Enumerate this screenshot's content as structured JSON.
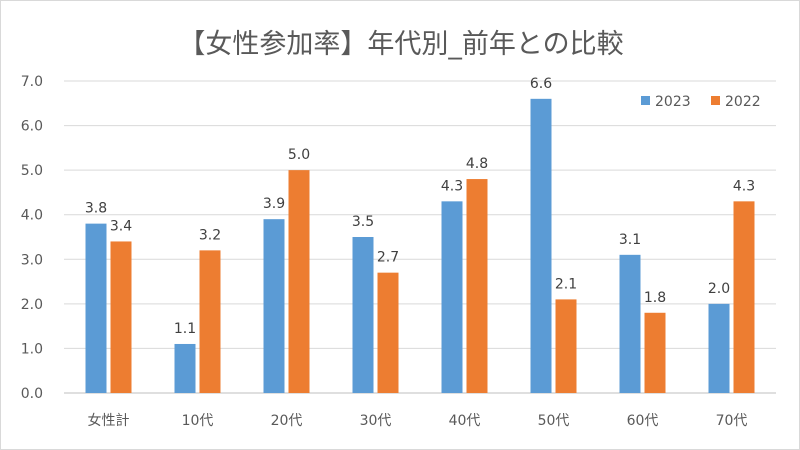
{
  "chart_data": {
    "type": "bar",
    "title": "【女性参加率】年代別_前年との比較",
    "xlabel": "",
    "ylabel": "",
    "ylim": [
      0,
      7
    ],
    "yticks": [
      "0.0",
      "1.0",
      "2.0",
      "3.0",
      "4.0",
      "5.0",
      "6.0",
      "7.0"
    ],
    "categories": [
      "女性計",
      "10代",
      "20代",
      "30代",
      "40代",
      "50代",
      "60代",
      "70代"
    ],
    "series": [
      {
        "name": "2023",
        "color": "#5b9bd5",
        "values": [
          3.8,
          1.1,
          3.9,
          3.5,
          4.3,
          6.6,
          3.1,
          2.0
        ],
        "labels": [
          "3.8",
          "1.1",
          "3.9",
          "3.5",
          "4.3",
          "6.6",
          "3.1",
          "2.0"
        ]
      },
      {
        "name": "2022",
        "color": "#ed7d31",
        "values": [
          3.4,
          3.2,
          5.0,
          2.7,
          4.8,
          2.1,
          1.8,
          4.3
        ],
        "labels": [
          "3.4",
          "3.2",
          "5.0",
          "2.7",
          "4.8",
          "2.1",
          "1.8",
          "4.3"
        ]
      }
    ],
    "grid": true,
    "legend": "top-right"
  }
}
